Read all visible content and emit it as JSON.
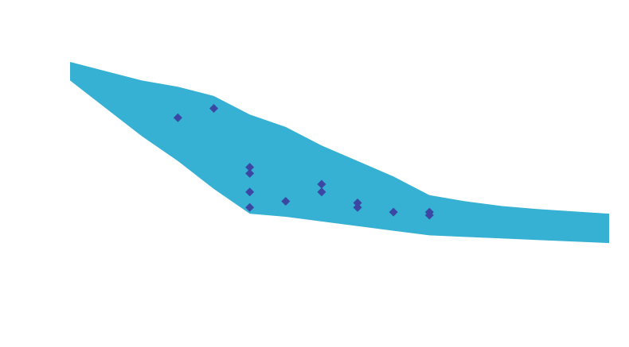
{
  "chart_data": {
    "type": "area",
    "x": [
      1,
      3,
      4,
      5,
      6,
      7,
      8,
      9,
      10,
      11,
      12,
      13,
      14,
      16
    ],
    "band": {
      "upper": [
        100,
        94,
        92,
        89,
        83,
        79,
        73,
        68,
        63,
        57,
        55,
        53.5,
        52.5,
        51
      ],
      "lower": [
        94,
        76,
        68,
        59,
        51,
        50,
        48.5,
        47,
        45.5,
        44,
        43.5,
        43,
        42.5,
        41.5
      ],
      "color": "#36b0d3"
    },
    "points": {
      "x": [
        4,
        5,
        6,
        6,
        6,
        6,
        7,
        8,
        8,
        9,
        9,
        10,
        11,
        11
      ],
      "y": [
        82,
        85,
        66,
        64,
        58,
        53,
        55,
        58,
        60.5,
        53,
        54.5,
        51.5,
        51.5,
        50.5
      ],
      "color": "#3b47a3",
      "marker": "diamond"
    },
    "xlim": [
      1,
      16
    ],
    "ylim": [
      20,
      100
    ],
    "grid": false,
    "title": "",
    "xlabel": "",
    "ylabel": ""
  }
}
